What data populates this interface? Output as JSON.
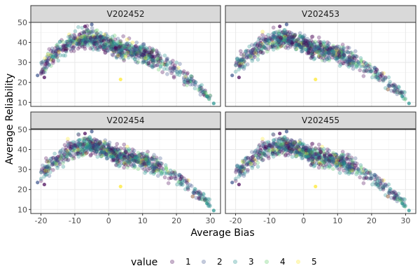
{
  "chart_data": {
    "type": "scatter",
    "facet_variable_values": [
      "V202452",
      "V202453",
      "V202454",
      "V202455"
    ],
    "xlabel": "Average Bias",
    "ylabel": "Average Reliability",
    "xlim": [
      -23,
      33
    ],
    "ylim": [
      8,
      50
    ],
    "x_ticks": [
      -20,
      -10,
      0,
      10,
      20,
      30
    ],
    "y_ticks": [
      10,
      20,
      30,
      40,
      50
    ],
    "grid": true,
    "legend": {
      "title": "value",
      "position": "bottom",
      "entries": [
        "1",
        "2",
        "3",
        "4",
        "5"
      ]
    },
    "series_colors": {
      "1": "#440154",
      "2": "#3B528B",
      "3": "#21908C",
      "4": "#5DC963",
      "5": "#FDE725"
    },
    "point_alpha": 0.3,
    "trend_shape": "inverted parabola",
    "trend_points": [
      {
        "x": -21,
        "y": 25
      },
      {
        "x": -18,
        "y": 31
      },
      {
        "x": -15,
        "y": 36
      },
      {
        "x": -12,
        "y": 39
      },
      {
        "x": -9,
        "y": 41
      },
      {
        "x": -6,
        "y": 42
      },
      {
        "x": -3,
        "y": 41
      },
      {
        "x": 0,
        "y": 39
      },
      {
        "x": 3,
        "y": 37
      },
      {
        "x": 6,
        "y": 36
      },
      {
        "x": 9,
        "y": 35
      },
      {
        "x": 12,
        "y": 33
      },
      {
        "x": 15,
        "y": 31
      },
      {
        "x": 18,
        "y": 28
      },
      {
        "x": 21,
        "y": 25
      },
      {
        "x": 24,
        "y": 21
      },
      {
        "x": 27,
        "y": 17
      },
      {
        "x": 30,
        "y": 13
      }
    ],
    "extreme_points": [
      {
        "x": 31,
        "y": 9.5,
        "value": "3"
      },
      {
        "x": 29,
        "y": 13,
        "value": "3"
      },
      {
        "x": -21,
        "y": 23.5,
        "value": "2"
      },
      {
        "x": -19,
        "y": 22.5,
        "value": "1"
      },
      {
        "x": -7,
        "y": 48,
        "value": "1"
      },
      {
        "x": -5,
        "y": 49,
        "value": "2"
      },
      {
        "x": 3.5,
        "y": 21.5,
        "value": "5"
      }
    ]
  }
}
